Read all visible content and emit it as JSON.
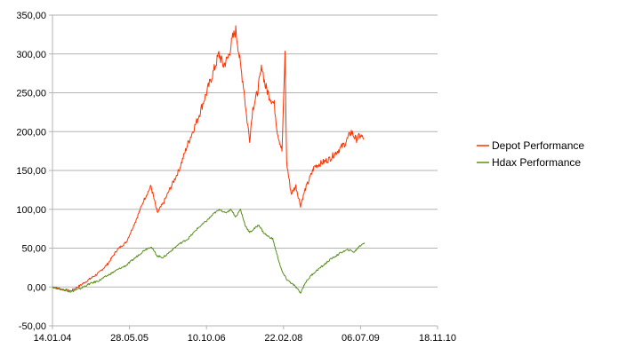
{
  "chart_data": {
    "type": "line",
    "grid": true,
    "legend_position": "right",
    "y_range": [
      -50,
      350
    ],
    "y_ticks": [
      "-50,00",
      "0,00",
      "50,00",
      "100,00",
      "150,00",
      "200,00",
      "250,00",
      "300,00",
      "350,00"
    ],
    "x_ticks": [
      "14.01.04",
      "28.05.05",
      "10.10.06",
      "22.02.08",
      "06.07.09",
      "18.11.10"
    ],
    "x_range_days": [
      0,
      2500
    ],
    "series": [
      {
        "name": "Depot Performance",
        "color": "#ff3300",
        "points": [
          [
            0,
            0
          ],
          [
            60,
            -3
          ],
          [
            120,
            -5
          ],
          [
            180,
            2
          ],
          [
            240,
            10
          ],
          [
            300,
            18
          ],
          [
            360,
            30
          ],
          [
            420,
            48
          ],
          [
            480,
            58
          ],
          [
            540,
            85
          ],
          [
            600,
            115
          ],
          [
            640,
            130
          ],
          [
            680,
            95
          ],
          [
            720,
            108
          ],
          [
            760,
            125
          ],
          [
            820,
            150
          ],
          [
            880,
            185
          ],
          [
            940,
            215
          ],
          [
            1000,
            250
          ],
          [
            1050,
            280
          ],
          [
            1080,
            300
          ],
          [
            1110,
            285
          ],
          [
            1140,
            295
          ],
          [
            1170,
            320
          ],
          [
            1190,
            330
          ],
          [
            1205,
            310
          ],
          [
            1220,
            285
          ],
          [
            1240,
            260
          ],
          [
            1260,
            220
          ],
          [
            1280,
            190
          ],
          [
            1300,
            230
          ],
          [
            1330,
            250
          ],
          [
            1360,
            285
          ],
          [
            1380,
            260
          ],
          [
            1410,
            245
          ],
          [
            1440,
            235
          ],
          [
            1460,
            200
          ],
          [
            1490,
            175
          ],
          [
            1510,
            300
          ],
          [
            1520,
            160
          ],
          [
            1550,
            120
          ],
          [
            1580,
            130
          ],
          [
            1610,
            105
          ],
          [
            1640,
            125
          ],
          [
            1670,
            140
          ],
          [
            1700,
            155
          ],
          [
            1750,
            160
          ],
          [
            1800,
            165
          ],
          [
            1850,
            175
          ],
          [
            1900,
            185
          ],
          [
            1940,
            200
          ],
          [
            1970,
            190
          ],
          [
            2000,
            195
          ],
          [
            2020,
            190
          ]
        ]
      },
      {
        "name": "Hdax Performance",
        "color": "#5a8f1e",
        "points": [
          [
            0,
            0
          ],
          [
            60,
            -3
          ],
          [
            120,
            -6
          ],
          [
            180,
            -2
          ],
          [
            240,
            4
          ],
          [
            300,
            8
          ],
          [
            360,
            15
          ],
          [
            420,
            22
          ],
          [
            480,
            28
          ],
          [
            540,
            38
          ],
          [
            600,
            48
          ],
          [
            640,
            52
          ],
          [
            680,
            40
          ],
          [
            720,
            38
          ],
          [
            760,
            45
          ],
          [
            820,
            55
          ],
          [
            880,
            62
          ],
          [
            940,
            75
          ],
          [
            1000,
            85
          ],
          [
            1050,
            95
          ],
          [
            1090,
            100
          ],
          [
            1120,
            95
          ],
          [
            1160,
            100
          ],
          [
            1190,
            90
          ],
          [
            1220,
            100
          ],
          [
            1250,
            80
          ],
          [
            1280,
            70
          ],
          [
            1310,
            75
          ],
          [
            1340,
            80
          ],
          [
            1370,
            70
          ],
          [
            1400,
            65
          ],
          [
            1430,
            62
          ],
          [
            1460,
            40
          ],
          [
            1490,
            20
          ],
          [
            1520,
            10
          ],
          [
            1550,
            5
          ],
          [
            1580,
            0
          ],
          [
            1610,
            -8
          ],
          [
            1640,
            5
          ],
          [
            1680,
            15
          ],
          [
            1720,
            22
          ],
          [
            1760,
            28
          ],
          [
            1800,
            35
          ],
          [
            1840,
            40
          ],
          [
            1880,
            45
          ],
          [
            1920,
            48
          ],
          [
            1960,
            45
          ],
          [
            1990,
            52
          ],
          [
            2010,
            55
          ],
          [
            2025,
            57
          ]
        ]
      }
    ]
  }
}
